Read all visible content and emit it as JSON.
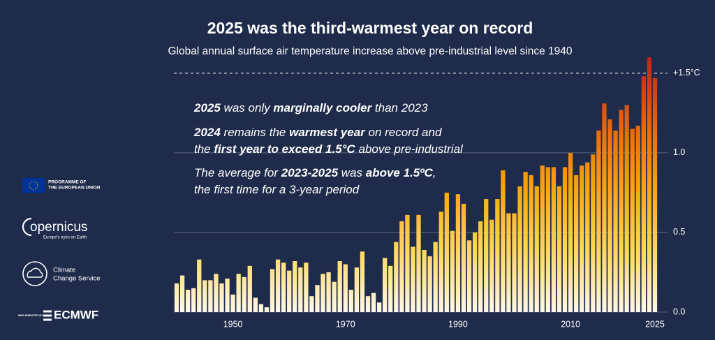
{
  "chart_data": {
    "type": "bar",
    "title": "2025 was the third-warmest year on record",
    "subtitle": "Global annual surface air temperature increase above pre-industrial level since 1940",
    "x": [
      1940,
      1941,
      1942,
      1943,
      1944,
      1945,
      1946,
      1947,
      1948,
      1949,
      1950,
      1951,
      1952,
      1953,
      1954,
      1955,
      1956,
      1957,
      1958,
      1959,
      1960,
      1961,
      1962,
      1963,
      1964,
      1965,
      1966,
      1967,
      1968,
      1969,
      1970,
      1971,
      1972,
      1973,
      1974,
      1975,
      1976,
      1977,
      1978,
      1979,
      1980,
      1981,
      1982,
      1983,
      1984,
      1985,
      1986,
      1987,
      1988,
      1989,
      1990,
      1991,
      1992,
      1993,
      1994,
      1995,
      1996,
      1997,
      1998,
      1999,
      2000,
      2001,
      2002,
      2003,
      2004,
      2005,
      2006,
      2007,
      2008,
      2009,
      2010,
      2011,
      2012,
      2013,
      2014,
      2015,
      2016,
      2017,
      2018,
      2019,
      2020,
      2021,
      2022,
      2023,
      2024,
      2025
    ],
    "values": [
      0.18,
      0.23,
      0.14,
      0.15,
      0.33,
      0.2,
      0.2,
      0.24,
      0.18,
      0.21,
      0.11,
      0.24,
      0.22,
      0.29,
      0.09,
      0.05,
      0.03,
      0.27,
      0.33,
      0.31,
      0.26,
      0.32,
      0.28,
      0.31,
      0.1,
      0.17,
      0.24,
      0.25,
      0.19,
      0.32,
      0.3,
      0.14,
      0.28,
      0.38,
      0.1,
      0.12,
      0.06,
      0.34,
      0.29,
      0.44,
      0.57,
      0.61,
      0.41,
      0.61,
      0.39,
      0.35,
      0.44,
      0.63,
      0.75,
      0.51,
      0.74,
      0.68,
      0.45,
      0.5,
      0.57,
      0.71,
      0.58,
      0.71,
      0.89,
      0.62,
      0.62,
      0.79,
      0.88,
      0.86,
      0.79,
      0.92,
      0.91,
      0.91,
      0.79,
      0.91,
      1.0,
      0.86,
      0.92,
      0.94,
      0.99,
      1.14,
      1.31,
      1.21,
      1.14,
      1.27,
      1.3,
      1.15,
      1.17,
      1.48,
      1.6,
      1.47
    ],
    "gradient_colors": [
      "#fff8ea",
      "#ffd658",
      "#f7a20a",
      "#e2620f",
      "#c21f1c"
    ],
    "xlim": [
      1939.5,
      2025.5
    ],
    "xticks": [
      1950,
      1970,
      1990,
      2010,
      2025
    ],
    "ylim": [
      0,
      1.6
    ],
    "yticks": [
      {
        "value": 0,
        "label": "0.0"
      },
      0.5,
      {
        "value": 1,
        "label": "1.0"
      },
      {
        "value": 1.5,
        "label": "+1.5°C"
      }
    ],
    "dashed_tick": 1.5,
    "grid": true,
    "annotations": [
      [
        [
          {
            "text": "2025",
            "bold": true
          },
          {
            "text": " was only "
          },
          {
            "text": "marginally cooler",
            "bold": true
          },
          {
            "text": " than 2023"
          }
        ]
      ],
      [
        [
          {
            "text": "2024",
            "bold": true
          },
          {
            "text": " remains the "
          },
          {
            "text": "warmest year",
            "bold": true
          },
          {
            "text": " on record and"
          }
        ],
        [
          {
            "text": "the "
          },
          {
            "text": "first year to exceed 1.5°C",
            "bold": true
          },
          {
            "text": " above pre-industrial"
          }
        ]
      ],
      [
        [
          {
            "text": "The average for "
          },
          {
            "text": "2023-2025",
            "bold": true
          },
          {
            "text": " was "
          },
          {
            "text": "above 1.5ºC",
            "bold": true
          },
          {
            "text": ","
          }
        ],
        [
          {
            "text": "the first time for a 3-year period"
          }
        ]
      ]
    ]
  },
  "logos": {
    "eu": [
      "PROGRAMME OF",
      "THE EUROPEAN UNION"
    ],
    "copernicus": [
      "opernicus",
      "Europe's eyes on Earth"
    ],
    "c3s": [
      "Climate",
      "Change Service"
    ],
    "implemented_by": "IMPLEMENTED BY",
    "ecmwf": "ECMWF"
  }
}
